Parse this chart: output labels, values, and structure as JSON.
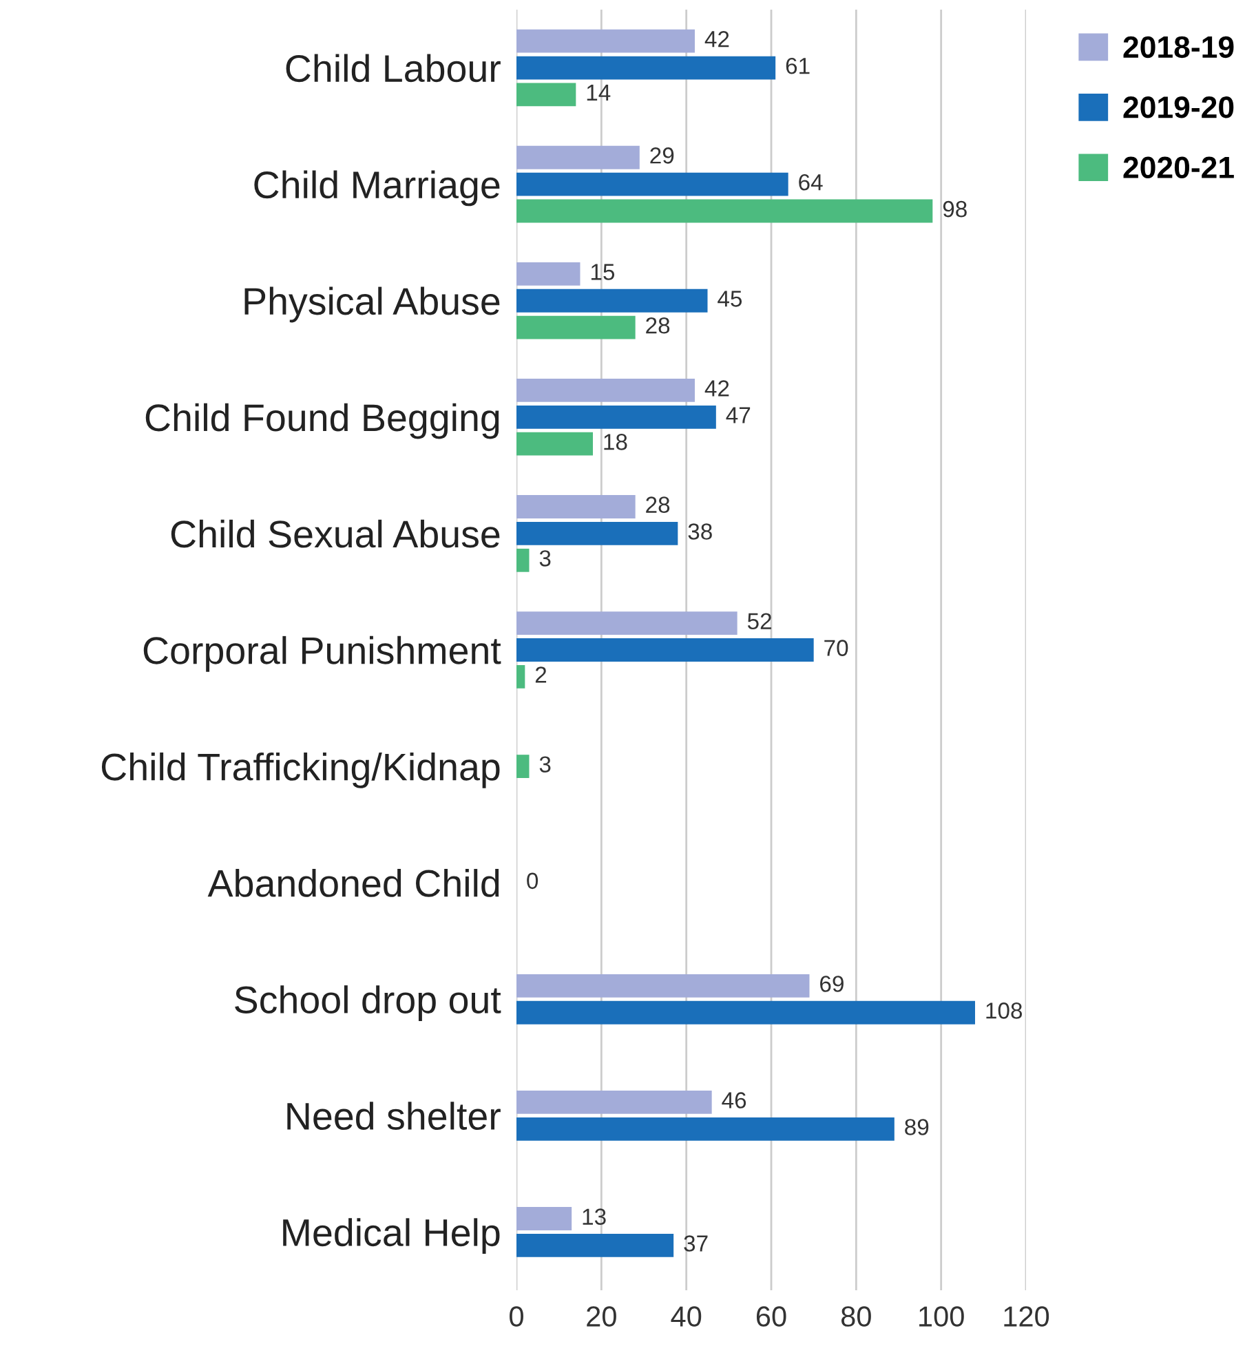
{
  "chart_data": {
    "type": "bar",
    "orientation": "horizontal",
    "categories": [
      "Child Labour",
      "Child Marriage",
      "Physical Abuse",
      "Child Found Begging",
      "Child Sexual Abuse",
      "Corporal Punishment",
      "Child Trafficking/Kidnap",
      "Abandoned Child",
      "School drop out",
      "Need shelter",
      "Medical Help"
    ],
    "series": [
      {
        "name": "2018-19",
        "color": "#a3acd9",
        "values": [
          42,
          29,
          15,
          42,
          28,
          52,
          null,
          null,
          69,
          46,
          13
        ]
      },
      {
        "name": "2019-20",
        "color": "#1a6fba",
        "values": [
          61,
          64,
          45,
          47,
          38,
          70,
          null,
          null,
          108,
          89,
          37
        ]
      },
      {
        "name": "2020-21",
        "color": "#4cbb7f",
        "values": [
          14,
          98,
          28,
          18,
          3,
          2,
          3,
          0,
          null,
          null,
          null
        ]
      }
    ],
    "xlim": [
      0,
      120
    ],
    "xticks": [
      0,
      20,
      40,
      60,
      80,
      100,
      120
    ],
    "grid": "x",
    "legend": "top right",
    "data_labels": true
  }
}
